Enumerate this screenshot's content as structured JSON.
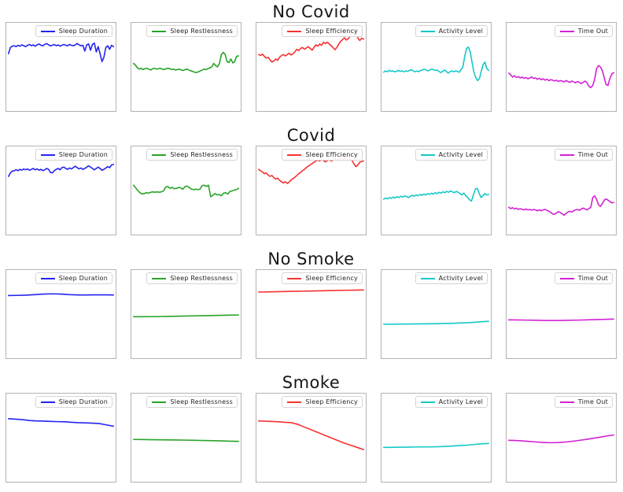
{
  "figure": {
    "background": "#ffffff",
    "frame_color": "#b3b3b3"
  },
  "chart_data": {
    "type": "line",
    "layout": {
      "grid": "4 rows (groups) x 5 columns (metrics), small-multiple sparkline panels",
      "axes": "no tick marks, no tick labels, no axis titles on any panel",
      "legend_position": "upper right inside each panel",
      "x": "implicit time index, evenly spaced",
      "y_unit": "normalized 0-100 (percent of panel height from bottom; panels show no numeric scale)"
    },
    "groups": [
      {
        "title": "No Covid",
        "series": [
          {
            "label": "Sleep Duration",
            "color": "#2424f0",
            "y": [
              65,
              72,
              73.5,
              74,
              73,
              74.5,
              73.5,
              75,
              74,
              73,
              74.5,
              75.5,
              74,
              75,
              73.5,
              75,
              76,
              74.5,
              74,
              75.5,
              76.5,
              75,
              74,
              74.5,
              75.5,
              74,
              75,
              73.5,
              74.5,
              75.5,
              74.5,
              74,
              75.5,
              74.5,
              74,
              75,
              76.5,
              75,
              74,
              74.5,
              68,
              75,
              76,
              69,
              75.5,
              77,
              67,
              73,
              65,
              56,
              61,
              72,
              74,
              70,
              74.5,
              73
            ]
          },
          {
            "label": "Sleep Restlessness",
            "color": "#28a428",
            "y": [
              54,
              52,
              49,
              47.5,
              48.5,
              47,
              48,
              48.5,
              47.5,
              46.5,
              48,
              48.5,
              47.5,
              48,
              48.5,
              47.5,
              47,
              48,
              48.5,
              48,
              47,
              47.5,
              46.5,
              47,
              47.5,
              46.5,
              46,
              47,
              47.5,
              46.5,
              45.5,
              45,
              44,
              43.5,
              44.5,
              45.5,
              46.5,
              47.5,
              47,
              48,
              49,
              50,
              54,
              51.5,
              50,
              54,
              64,
              66.5,
              64,
              56,
              55,
              59,
              54.5,
              56,
              62,
              62.5
            ]
          },
          {
            "label": "Sleep Efficiency",
            "color": "#f43333",
            "y": [
              64,
              63,
              64.5,
              62,
              60,
              61,
              58,
              55.5,
              57,
              59,
              57.5,
              61,
              63,
              64,
              62.5,
              64,
              65.5,
              63.5,
              65,
              67,
              70,
              68.5,
              71,
              72,
              70,
              71.5,
              73,
              71,
              69,
              72,
              75,
              73.5,
              76,
              74.5,
              78,
              76.5,
              78,
              76,
              74,
              72,
              69.5,
              72,
              76,
              79,
              81,
              83,
              80.5,
              82,
              85,
              89,
              91.5,
              87,
              83,
              80,
              82.5,
              81.5
            ]
          },
          {
            "label": "Activity Level",
            "color": "#16c8c8",
            "y": [
              44,
              45.5,
              44.5,
              46,
              45,
              45.5,
              44.5,
              45,
              46,
              45,
              45.5,
              44.5,
              45.5,
              45,
              46,
              47,
              45.5,
              44.5,
              45.5,
              44.5,
              46,
              46.5,
              47.5,
              46.5,
              45.5,
              46.5,
              47.5,
              47,
              46,
              46.5,
              45,
              43.5,
              45,
              46.5,
              45,
              43,
              44.5,
              45.5,
              44.5,
              45.5,
              45,
              44,
              47,
              50,
              62,
              71,
              72.5,
              67,
              55,
              44,
              38,
              34.5,
              37,
              45,
              53,
              55.5,
              48,
              46
            ]
          },
          {
            "label": "Time Out",
            "color": "#d321d3",
            "y": [
              43,
              41,
              38.5,
              40,
              38,
              39,
              37.5,
              38.5,
              37,
              38,
              36.5,
              37.5,
              38.5,
              37,
              37.5,
              36,
              37,
              35.5,
              36.5,
              35,
              36,
              34.5,
              35.5,
              35,
              34,
              35,
              33.5,
              34.5,
              34,
              33,
              34.5,
              33.5,
              32.5,
              34,
              33,
              32,
              33.5,
              32.5,
              31,
              32.5,
              34,
              32,
              28,
              26.5,
              29,
              36,
              48,
              51.5,
              50,
              46,
              38,
              30,
              29,
              37,
              42,
              43.5
            ]
          }
        ]
      },
      {
        "title": "Covid",
        "series": [
          {
            "label": "Sleep Duration",
            "color": "#2424f0",
            "y": [
              66,
              70,
              72,
              72.5,
              73.5,
              72.5,
              74,
              73,
              74.5,
              73.5,
              74.5,
              73,
              74,
              75,
              73.5,
              74.5,
              73,
              74,
              72.5,
              73.5,
              75,
              74,
              70.5,
              70,
              72.5,
              74,
              75,
              73.5,
              76,
              76.5,
              75,
              74,
              75.5,
              74.5,
              76,
              77.5,
              76,
              74.5,
              75.5,
              74,
              75,
              76.5,
              78,
              76.5,
              75,
              73.5,
              75,
              76.5,
              75,
              73,
              74,
              75.5,
              77,
              76,
              79,
              79.5
            ]
          },
          {
            "label": "Sleep Restlessness",
            "color": "#28a428",
            "y": [
              56,
              53,
              50,
              47.5,
              46,
              46.5,
              47.5,
              47,
              48,
              48.5,
              48,
              48.5,
              48,
              48.5,
              49.5,
              54,
              54.5,
              52.5,
              53.5,
              52,
              52.5,
              53.5,
              53,
              51.5,
              54.5,
              55,
              53.5,
              51.5,
              51,
              51.5,
              51,
              51.5,
              55.5,
              56,
              54.5,
              56,
              43,
              44.5,
              46.5,
              45,
              45.5,
              44,
              47,
              47.5,
              46,
              49,
              49.5,
              50.5,
              51,
              52.5
            ]
          },
          {
            "label": "Sleep Efficiency",
            "color": "#f43333",
            "y": [
              74,
              72.5,
              71,
              69,
              70,
              67.5,
              66,
              67,
              64.5,
              63,
              64,
              61.5,
              60,
              58.5,
              60,
              58,
              59.5,
              62,
              63.5,
              65,
              67,
              69,
              70.5,
              72.5,
              74,
              76,
              77.5,
              79,
              80.5,
              82,
              83.5,
              84.5,
              83.5,
              85,
              84,
              82.5,
              84,
              85,
              83.5,
              84.5,
              86,
              84.5,
              85.5,
              86.5,
              85,
              86,
              87,
              85.5,
              86.5,
              84,
              80,
              77,
              79,
              82,
              83,
              83.5
            ]
          },
          {
            "label": "Activity Level",
            "color": "#16c8c8",
            "y": [
              40,
              41.5,
              40.5,
              42,
              41,
              42.5,
              41.5,
              43,
              42,
              43.5,
              42.5,
              44,
              43,
              42,
              43.5,
              44.5,
              43.5,
              45,
              44,
              45.5,
              44.5,
              46,
              45,
              46.5,
              45.5,
              47,
              46,
              47.5,
              46.5,
              48,
              47,
              48.5,
              47.5,
              49,
              48,
              49.5,
              48.5,
              47.5,
              49,
              48,
              46.5,
              45,
              47,
              44,
              42,
              39.5,
              38,
              45,
              51.5,
              52.5,
              47,
              42,
              44,
              46.5,
              45,
              45.5
            ]
          },
          {
            "label": "Time Out",
            "color": "#d321d3",
            "y": [
              31,
              29.5,
              30.5,
              29,
              30,
              28.5,
              29.5,
              28.5,
              28,
              29,
              28,
              28.5,
              27.5,
              28.5,
              28,
              27,
              28,
              27,
              28,
              28.5,
              27.5,
              26.5,
              25,
              23.5,
              23,
              24.5,
              26,
              25,
              23.5,
              22,
              24,
              25.5,
              26.5,
              25.5,
              27,
              28,
              28.5,
              27.5,
              29,
              30,
              29,
              28,
              29.5,
              31,
              42,
              44,
              40,
              34,
              32,
              35,
              39,
              40.5,
              39,
              37.5,
              36,
              36.5
            ]
          }
        ]
      },
      {
        "title": "No Smoke",
        "series": [
          {
            "label": "Sleep Duration",
            "color": "#2424f0",
            "y": [
              71,
              71.2,
              71.5,
              72,
              72.7,
              73,
              72.7,
              72,
              71.7,
              71.7,
              71.8,
              71.8,
              71.7
            ]
          },
          {
            "label": "Sleep Restlessness",
            "color": "#28a428",
            "y": [
              47,
              47,
              47.1,
              47.2,
              47.4,
              47.6,
              47.8,
              48,
              48.2,
              48.4,
              48.6,
              48.8,
              49
            ]
          },
          {
            "label": "Sleep Efficiency",
            "color": "#f43333",
            "y": [
              75,
              75.2,
              75.4,
              75.6,
              75.8,
              76,
              76.2,
              76.4,
              76.6,
              76.8,
              77,
              77.2,
              77.4
            ]
          },
          {
            "label": "Activity Level",
            "color": "#16c8c8",
            "y": [
              38.5,
              38.6,
              38.7,
              38.8,
              38.9,
              39,
              39.1,
              39.3,
              39.6,
              40,
              40.5,
              41.2,
              41.8
            ]
          },
          {
            "label": "Time Out",
            "color": "#d321d3",
            "y": [
              43.5,
              43.4,
              43.2,
              43,
              42.8,
              42.7,
              42.8,
              43,
              43.2,
              43.5,
              43.8,
              44,
              44.4
            ]
          }
        ]
      },
      {
        "title": "Smoke",
        "series": [
          {
            "label": "Sleep Duration",
            "color": "#2424f0",
            "y": [
              71.5,
              71,
              70.5,
              69.5,
              69,
              68.8,
              68.5,
              68.2,
              68,
              67.5,
              67,
              66.8,
              66.5,
              66,
              64.5,
              63
            ]
          },
          {
            "label": "Sleep Restlessness",
            "color": "#28a428",
            "y": [
              48,
              47.9,
              47.7,
              47.6,
              47.5,
              47.4,
              47.2,
              47,
              46.8,
              46.6,
              46.4,
              46,
              45.8
            ]
          },
          {
            "label": "Sleep Efficiency",
            "color": "#f43333",
            "y": [
              69,
              68.7,
              68.4,
              68,
              67.5,
              67,
              65,
              62,
              59,
              56,
              53,
              50,
              47,
              44,
              41.5,
              39,
              36.5
            ]
          },
          {
            "label": "Activity Level",
            "color": "#16c8c8",
            "y": [
              39,
              39,
              39.2,
              39.2,
              39.4,
              39.5,
              39.5,
              39.7,
              40,
              40.5,
              41,
              41.5,
              42.2,
              43,
              43.5
            ]
          },
          {
            "label": "Time Out",
            "color": "#d321d3",
            "y": [
              47,
              46.8,
              46.4,
              45.8,
              45.2,
              44.7,
              44.4,
              44.3,
              44.7,
              45.3,
              46.2,
              47.2,
              48.3,
              49.5,
              50.7,
              52,
              53
            ]
          }
        ]
      }
    ]
  }
}
